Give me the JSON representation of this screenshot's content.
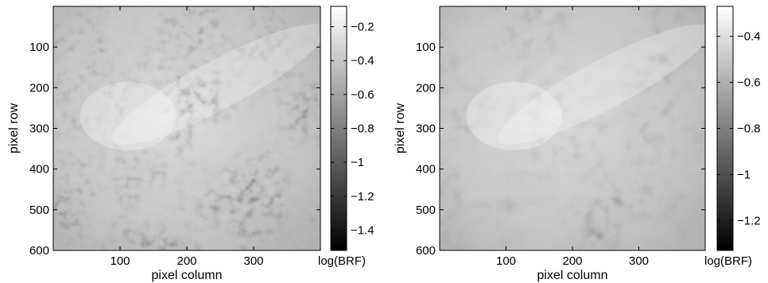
{
  "chart_data": [
    {
      "type": "heatmap",
      "colormap": "gray",
      "xlabel": "pixel column",
      "ylabel": "pixel row",
      "xlim": [
        0,
        400
      ],
      "ylim": [
        0,
        600
      ],
      "y_reversed": true,
      "x_ticks": [
        100,
        200,
        300
      ],
      "y_ticks": [
        100,
        200,
        300,
        400,
        500,
        600
      ],
      "colorbar": {
        "label": "log(BRF)",
        "range": [
          -1.52,
          -0.08
        ],
        "ticks": [
          -1.4,
          -1.2,
          -1,
          -0.8,
          -0.6,
          -0.4,
          -0.2
        ],
        "tick_labels": [
          "−1.4",
          "−1.2",
          "−1",
          "−0.8",
          "−0.6",
          "−0.4",
          "−0.2"
        ]
      }
    },
    {
      "type": "heatmap",
      "colormap": "gray",
      "xlabel": "pixel column",
      "ylabel": "pixel row",
      "xlim": [
        0,
        400
      ],
      "ylim": [
        0,
        600
      ],
      "y_reversed": true,
      "x_ticks": [
        100,
        200,
        300
      ],
      "y_ticks": [
        100,
        200,
        300,
        400,
        500,
        600
      ],
      "colorbar": {
        "label": "log(BRF)",
        "range": [
          -1.33,
          -0.27
        ],
        "ticks": [
          -1.2,
          -1,
          -0.8,
          -0.6,
          -0.4
        ],
        "tick_labels": [
          "−1.2",
          "−1",
          "−0.8",
          "−0.6",
          "−0.4"
        ]
      }
    }
  ],
  "colors": {
    "axis": "#000000",
    "background": "#ffffff"
  }
}
